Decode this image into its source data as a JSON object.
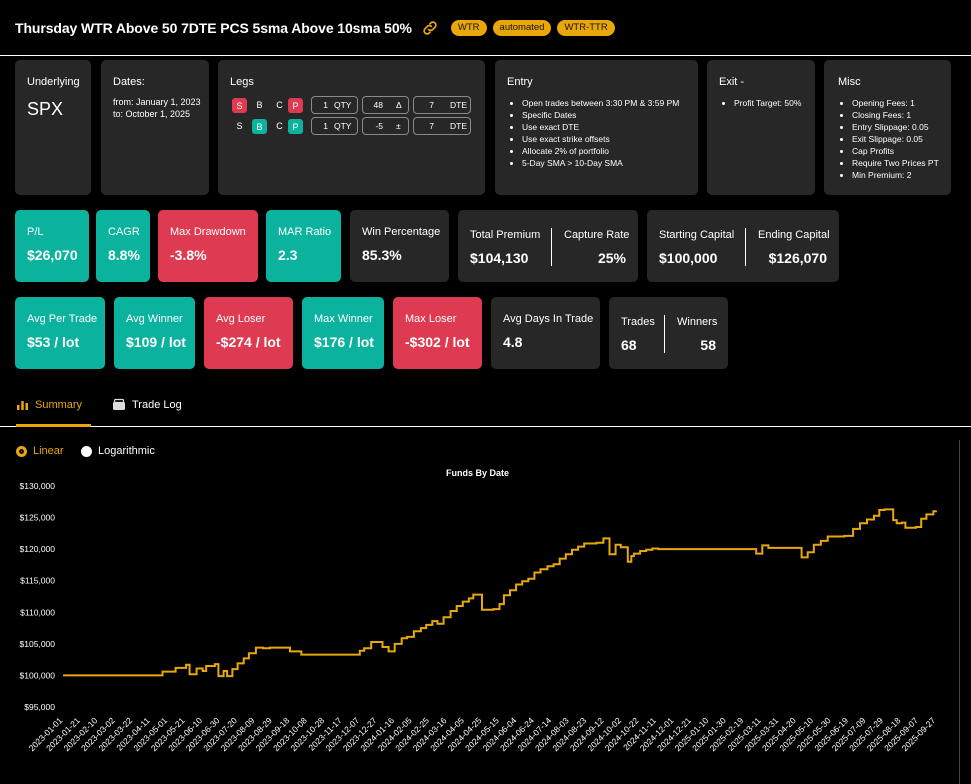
{
  "header": {
    "title": "Thursday WTR Above 50 7DTE PCS 5sma Above 10sma 50%",
    "tags": [
      "WTR",
      "automated",
      "WTR-TTR"
    ]
  },
  "underlying": {
    "label": "Underlying",
    "value": "SPX"
  },
  "dates": {
    "label": "Dates:",
    "from": "from: January 1, 2023",
    "to": "to: October 1, 2025"
  },
  "legs": {
    "label": "Legs",
    "rows": [
      {
        "sb": [
          "S",
          "B"
        ],
        "sb_active": "S",
        "cp": [
          "C",
          "P"
        ],
        "cp_active": "P",
        "qty": "1",
        "qty_unit": "QTY",
        "delta": "48",
        "delta_unit": "Δ",
        "dte": "7",
        "dte_unit": "DTE"
      },
      {
        "sb": [
          "S",
          "B"
        ],
        "sb_active": "B",
        "cp": [
          "C",
          "P"
        ],
        "cp_active": "P",
        "qty": "1",
        "qty_unit": "QTY",
        "delta": "-5",
        "delta_unit": "±",
        "dte": "7",
        "dte_unit": "DTE"
      }
    ]
  },
  "entry": {
    "label": "Entry",
    "items": [
      "Open trades between 3:30 PM & 3:59 PM",
      "Specific Dates",
      "Use exact DTE",
      "Use exact strike offsets",
      "Allocate 2% of portfolio",
      "5-Day SMA > 10-Day SMA"
    ]
  },
  "exit": {
    "label": "Exit -",
    "items": [
      "Profit Target: 50%"
    ]
  },
  "misc": {
    "label": "Misc",
    "items": [
      "Opening Fees: 1",
      "Closing Fees: 1",
      "Entry Slippage: 0.05",
      "Exit Slippage: 0.05",
      "Cap Profits",
      "Require Two Prices PT",
      "Min Premium: 2"
    ]
  },
  "stats_row1": [
    {
      "label": "P/L",
      "value": "$26,070",
      "color": "teal"
    },
    {
      "label": "CAGR",
      "value": "8.8%",
      "color": "teal"
    },
    {
      "label": "Max Drawdown",
      "value": "-3.8%",
      "color": "red"
    },
    {
      "label": "MAR Ratio",
      "value": "2.3",
      "color": "teal"
    },
    {
      "label": "Win Percentage",
      "value": "85.3%",
      "color": "dark"
    }
  ],
  "premium": {
    "label": "Total Premium",
    "value": "$104,130",
    "label2": "Capture Rate",
    "value2": "25%"
  },
  "capital": {
    "label": "Starting Capital",
    "value": "$100,000",
    "label2": "Ending Capital",
    "value2": "$126,070"
  },
  "stats_row2": [
    {
      "label": "Avg Per Trade",
      "value": "$53 / lot",
      "color": "teal"
    },
    {
      "label": "Avg Winner",
      "value": "$109 / lot",
      "color": "teal"
    },
    {
      "label": "Avg Loser",
      "value": "-$274 / lot",
      "color": "red"
    },
    {
      "label": "Max Winner",
      "value": "$176 / lot",
      "color": "teal"
    },
    {
      "label": "Max Loser",
      "value": "-$302 / lot",
      "color": "red"
    },
    {
      "label": "Avg Days In Trade",
      "value": "4.8",
      "color": "dark"
    }
  ],
  "trades": {
    "label": "Trades",
    "value": "68",
    "label2": "Winners",
    "value2": "58"
  },
  "tabs": {
    "summary": "Summary",
    "trade_log": "Trade Log"
  },
  "scale": {
    "linear": "Linear",
    "log": "Logarithmic",
    "selected": "Linear"
  },
  "colors": {
    "teal": "#0bb39e",
    "red": "#de3b53",
    "dark": "#272727",
    "accent": "#e8a80b",
    "line": "#e8a80b"
  },
  "chart_data": {
    "type": "line",
    "title": "Funds By Date",
    "xlabel": "",
    "ylabel": "",
    "ylim": [
      95000,
      130000
    ],
    "yticks": [
      "$95,000",
      "$100,000",
      "$105,000",
      "$110,000",
      "$115,000",
      "$120,000",
      "$125,000",
      "$130,000"
    ],
    "ytick_values": [
      95000,
      100000,
      105000,
      110000,
      115000,
      120000,
      125000,
      130000
    ],
    "xticks": [
      "2023-01-01",
      "2023-01-21",
      "2023-02-10",
      "2023-03-02",
      "2023-03-22",
      "2023-04-11",
      "2023-05-01",
      "2023-05-21",
      "2023-06-10",
      "2023-06-30",
      "2023-07-20",
      "2023-08-09",
      "2023-08-29",
      "2023-09-18",
      "2023-10-08",
      "2023-10-28",
      "2023-11-17",
      "2023-12-07",
      "2023-12-27",
      "2024-01-16",
      "2024-02-05",
      "2024-02-25",
      "2024-03-16",
      "2024-04-05",
      "2024-04-25",
      "2024-05-15",
      "2024-06-04",
      "2024-06-24",
      "2024-07-14",
      "2024-08-03",
      "2024-08-23",
      "2024-09-12",
      "2024-10-02",
      "2024-10-22",
      "2024-11-11",
      "2024-12-01",
      "2024-12-21",
      "2025-01-10",
      "2025-01-30",
      "2025-02-19",
      "2025-03-11",
      "2025-03-31",
      "2025-04-20",
      "2025-05-10",
      "2025-05-30",
      "2025-06-19",
      "2025-07-09",
      "2025-07-29",
      "2025-08-18",
      "2025-09-07",
      "2025-09-27"
    ],
    "grid": false,
    "legend": "none",
    "series": [
      {
        "x": [
          "2023-01-01",
          "2023-04-25",
          "2023-05-10",
          "2023-05-22",
          "2023-05-26",
          "2023-06-03",
          "2023-06-10",
          "2023-06-14",
          "2023-06-24",
          "2023-06-28",
          "2023-07-04",
          "2023-07-08",
          "2023-07-14",
          "2023-07-20",
          "2023-07-27",
          "2023-08-02",
          "2023-08-10",
          "2023-08-18",
          "2023-08-26",
          "2023-09-18",
          "2023-10-01",
          "2023-12-07",
          "2023-12-12",
          "2023-12-20",
          "2024-01-02",
          "2024-01-09",
          "2024-01-16",
          "2024-01-24",
          "2024-01-30",
          "2024-02-07",
          "2024-02-15",
          "2024-02-21",
          "2024-02-28",
          "2024-03-05",
          "2024-03-12",
          "2024-03-20",
          "2024-03-27",
          "2024-04-03",
          "2024-04-10",
          "2024-04-15",
          "2024-04-25",
          "2024-05-08",
          "2024-05-15",
          "2024-05-20",
          "2024-05-27",
          "2024-06-03",
          "2024-06-10",
          "2024-06-17",
          "2024-06-24",
          "2024-07-01",
          "2024-07-09",
          "2024-07-16",
          "2024-07-23",
          "2024-07-30",
          "2024-08-06",
          "2024-08-13",
          "2024-08-20",
          "2024-08-27",
          "2024-09-03",
          "2024-09-11",
          "2024-09-18",
          "2024-09-25",
          "2024-10-01",
          "2024-10-09",
          "2024-10-13",
          "2024-10-16",
          "2024-10-23",
          "2024-10-30",
          "2024-11-06",
          "2024-11-13",
          "2025-03-01",
          "2025-03-05",
          "2025-03-12",
          "2025-03-19",
          "2025-04-26",
          "2025-05-03",
          "2025-05-10",
          "2025-05-18",
          "2025-05-26",
          "2025-06-04",
          "2025-06-14",
          "2025-06-24",
          "2025-07-02",
          "2025-07-10",
          "2025-07-18",
          "2025-07-24",
          "2025-07-30",
          "2025-08-09",
          "2025-08-13",
          "2025-08-19",
          "2025-08-23",
          "2025-09-04",
          "2025-09-10",
          "2025-09-16",
          "2025-09-24",
          "2025-09-27"
        ],
        "values": [
          100000,
          100600,
          101200,
          101700,
          100200,
          101100,
          100700,
          101500,
          101800,
          99900,
          100700,
          99900,
          101000,
          101900,
          102700,
          103500,
          104400,
          104300,
          104400,
          103800,
          103300,
          103900,
          104300,
          105300,
          104500,
          103800,
          105000,
          105900,
          106100,
          107000,
          107500,
          108000,
          108600,
          108200,
          109200,
          110200,
          111000,
          111700,
          112200,
          112800,
          110400,
          110500,
          111300,
          112700,
          113500,
          114400,
          114900,
          115300,
          116300,
          116800,
          117300,
          117600,
          118500,
          119200,
          119900,
          120400,
          120900,
          120900,
          121000,
          121700,
          119200,
          120700,
          120300,
          118000,
          118900,
          119300,
          119700,
          119900,
          120100,
          120000,
          120000,
          119300,
          120600,
          120200,
          118700,
          119500,
          120700,
          121300,
          122000,
          122000,
          122100,
          123200,
          124100,
          124700,
          125300,
          126200,
          126300,
          124600,
          124100,
          124200,
          123400,
          123500,
          124800,
          125500,
          126000,
          126100
        ]
      }
    ]
  }
}
